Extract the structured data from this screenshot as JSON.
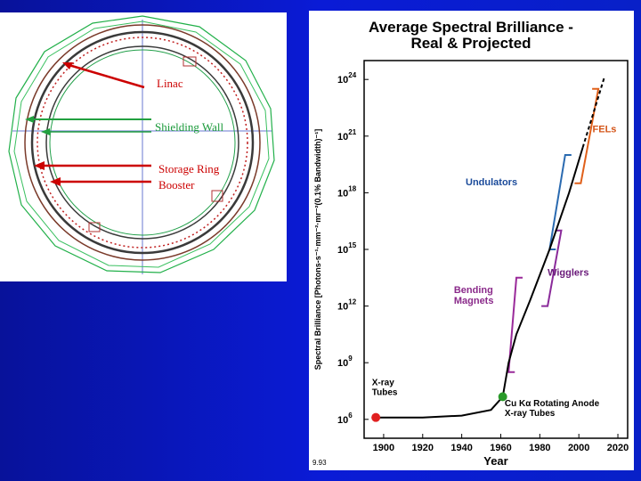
{
  "ring_figure": {
    "labels": [
      {
        "text": "Linac",
        "color": "#cc0000"
      },
      {
        "text": "Shielding Wall",
        "color": "#1a9a3a"
      },
      {
        "text": "Storage Ring",
        "color": "#cc0000"
      },
      {
        "text": "Booster",
        "color": "#cc0000"
      }
    ]
  },
  "chart_data": {
    "type": "line",
    "title_line1": "Average Spectral Brilliance -",
    "title_line2": "Real & Projected",
    "xlabel": "Year",
    "ylabel": "Spectral Brilliance [Photons-s⁻¹·mm⁻²·mr⁻²(0.1% Bandwidth)⁻¹]",
    "x_ticks": [
      "1900",
      "1920",
      "1940",
      "1960",
      "1980",
      "2000",
      "2020"
    ],
    "y_tick_base": "10",
    "y_tick_exponents": [
      "6",
      "9",
      "12",
      "15",
      "18",
      "21",
      "24"
    ],
    "xlim": [
      1890,
      2025
    ],
    "ylim_exponent": [
      5,
      25
    ],
    "y_scale": "log",
    "solid_curve": [
      [
        1895,
        6.1
      ],
      [
        1920,
        6.1
      ],
      [
        1940,
        6.2
      ],
      [
        1955,
        6.5
      ],
      [
        1961,
        7.2
      ],
      [
        1964,
        9.0
      ],
      [
        1968,
        10.5
      ],
      [
        1975,
        12.3
      ],
      [
        1985,
        15.0
      ],
      [
        1995,
        18.0
      ],
      [
        2002,
        20.4
      ]
    ],
    "dashed_curve": [
      [
        2002,
        20.4
      ],
      [
        2008,
        22.4
      ],
      [
        2013,
        24.1
      ]
    ],
    "points": [
      {
        "year": 1896,
        "exp": 6.1,
        "color": "#e02020"
      },
      {
        "year": 1961,
        "exp": 7.2,
        "color": "#2a9a2a"
      }
    ],
    "annotations": [
      {
        "lines": [
          "X-ray",
          "Tubes"
        ],
        "color": "#000000"
      },
      {
        "lines": [
          "Cu Kα Rotating Anode",
          "X-ray Tubes"
        ],
        "color": "#000000"
      },
      {
        "lines": [
          "Bending",
          "Magnets"
        ],
        "color": "#8a2a8a"
      },
      {
        "lines": [
          "Wigglers"
        ],
        "color": "#6a1a7a"
      },
      {
        "lines": [
          "Undulators"
        ],
        "color": "#1a4a9a"
      },
      {
        "lines": [
          "FELs"
        ],
        "color": "#d4561a"
      }
    ],
    "bracket_colors": {
      "bending": "#9a2a9a",
      "wigglers": "#8a2a9a",
      "undulators": "#2a6ab0",
      "fels": "#e0601a"
    },
    "footnote": "9.93"
  }
}
